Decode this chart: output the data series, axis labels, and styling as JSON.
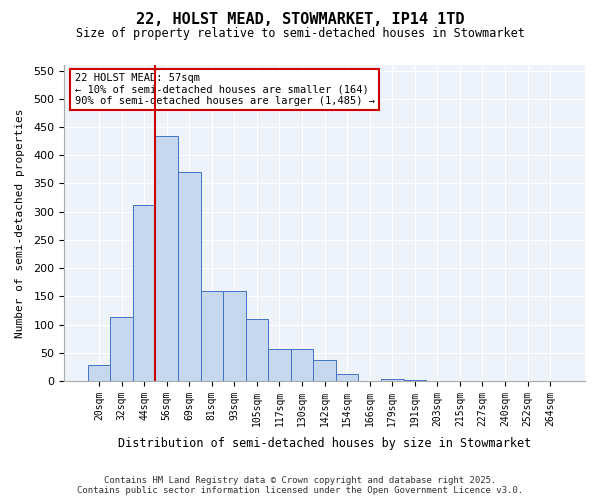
{
  "title": "22, HOLST MEAD, STOWMARKET, IP14 1TD",
  "subtitle": "Size of property relative to semi-detached houses in Stowmarket",
  "xlabel": "Distribution of semi-detached houses by size in Stowmarket",
  "ylabel": "Number of semi-detached properties",
  "bar_values": [
    28,
    113,
    311,
    435,
    371,
    159,
    159,
    110,
    57,
    57,
    37,
    13,
    0,
    4,
    1,
    0,
    0,
    0,
    0,
    0,
    0
  ],
  "bin_labels": [
    "20sqm",
    "32sqm",
    "44sqm",
    "56sqm",
    "69sqm",
    "81sqm",
    "93sqm",
    "105sqm",
    "117sqm",
    "130sqm",
    "142sqm",
    "154sqm",
    "166sqm",
    "179sqm",
    "191sqm",
    "203sqm",
    "215sqm",
    "227sqm",
    "240sqm",
    "252sqm",
    "264sqm"
  ],
  "bar_color": "#c5d8f0",
  "bar_edge_color": "#4472c4",
  "vline_color": "#cc0000",
  "vline_x": 2.5,
  "annotation_title": "22 HOLST MEAD: 57sqm",
  "annotation_line1": "← 10% of semi-detached houses are smaller (164)",
  "annotation_line2": "90% of semi-detached houses are larger (1,485) →",
  "annotation_box_color": "#cc0000",
  "ylim": [
    0,
    560
  ],
  "yticks": [
    0,
    50,
    100,
    150,
    200,
    250,
    300,
    350,
    400,
    450,
    500,
    550
  ],
  "background_color": "#eef2fa",
  "footer_line1": "Contains HM Land Registry data © Crown copyright and database right 2025.",
  "footer_line2": "Contains public sector information licensed under the Open Government Licence v3.0."
}
